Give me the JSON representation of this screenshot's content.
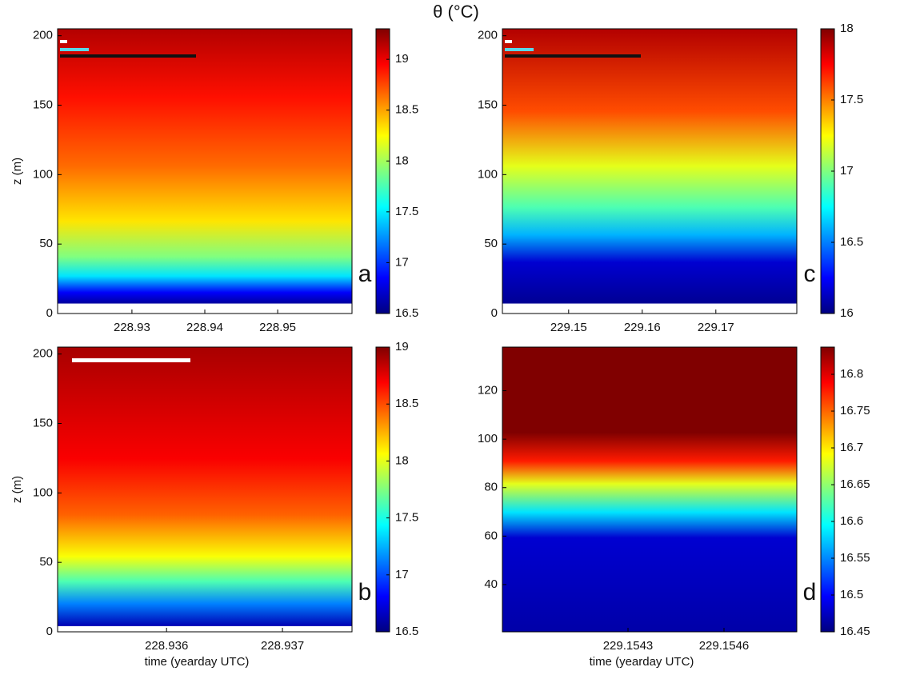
{
  "title": "θ (°C)",
  "chart_data": [
    {
      "type": "heatmap",
      "panel_label": "a",
      "ylabel": "z (m)",
      "colormap": "jet",
      "xlim": [
        228.9198,
        228.9602
      ],
      "xticks": [
        228.93,
        228.94,
        228.95
      ],
      "ylim": [
        0,
        205
      ],
      "yticks": [
        0,
        50,
        100,
        150,
        200
      ],
      "clim": [
        16.5,
        19.3
      ],
      "cticks": [
        16.5,
        17,
        17.5,
        18,
        18.5,
        19
      ]
    },
    {
      "type": "heatmap",
      "panel_label": "b",
      "ylabel": "z (m)",
      "xlabel": "time (yearday UTC)",
      "colormap": "jet",
      "xlim": [
        228.93506,
        228.9376
      ],
      "xticks": [
        228.936,
        228.937
      ],
      "ylim": [
        0,
        205
      ],
      "yticks": [
        0,
        50,
        100,
        150,
        200
      ],
      "clim": [
        16.5,
        19
      ],
      "cticks": [
        16.5,
        17,
        17.5,
        18,
        18.5,
        19
      ]
    },
    {
      "type": "heatmap",
      "panel_label": "c",
      "colormap": "jet",
      "xlim": [
        229.141,
        229.181
      ],
      "xticks": [
        229.15,
        229.16,
        229.17
      ],
      "ylim": [
        0,
        205
      ],
      "yticks": [
        0,
        50,
        100,
        150,
        200
      ],
      "clim": [
        16,
        18
      ],
      "cticks": [
        16,
        16.5,
        17,
        17.5,
        18
      ]
    },
    {
      "type": "heatmap",
      "panel_label": "d",
      "xlabel": "time (yearday UTC)",
      "colormap": "jet",
      "xlim": [
        229.1539075,
        229.1548275
      ],
      "xticks": [
        229.1543,
        229.1546
      ],
      "ylim": [
        20.5,
        138
      ],
      "yticks": [
        40,
        60,
        80,
        100,
        120
      ],
      "clim": [
        16.45,
        16.837
      ],
      "cticks": [
        16.45,
        16.5,
        16.55,
        16.6,
        16.65,
        16.7,
        16.75,
        16.8
      ]
    }
  ]
}
